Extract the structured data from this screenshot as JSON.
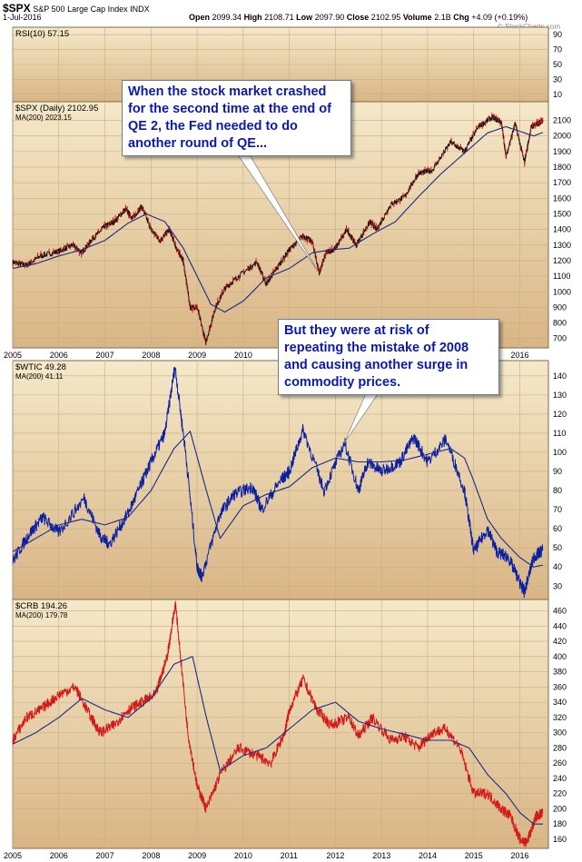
{
  "header": {
    "symbol": "$SPX",
    "name": "S&P 500 Large Cap Index",
    "exchange": "INDX",
    "date": "1-Jul-2016",
    "open_label": "Open",
    "open": "2099.34",
    "high_label": "High",
    "high": "2108.71",
    "low_label": "Low",
    "low": "2097.90",
    "close_label": "Close",
    "close": "2102.95",
    "volume_label": "Volume",
    "volume": "2.1B",
    "chg_label": "Chg",
    "chg": "+4.09 (+0.19%)",
    "watermark": "© StockCharts.com"
  },
  "colors": {
    "panel_top": "#f5e9c9",
    "panel_bottom": "#d9b585",
    "grid": "#c8ad86",
    "spx_line": "#111111",
    "ma_line": "#1a2a88",
    "wtic_line": "#0a1fa3",
    "crb_line": "#d21a1a",
    "callout_text": "#0a1aa8"
  },
  "callouts": [
    {
      "lines": [
        "When the stock market crashed",
        "for the second time at the end of",
        "QE 2, the Fed needed to do",
        "another round of QE..."
      ]
    },
    {
      "lines": [
        "But they were at risk of",
        "repeating the mistake of 2008",
        "and causing another surge in",
        "commodity prices."
      ]
    }
  ],
  "chart_data": [
    {
      "type": "line",
      "title": "RSI(10) 57.15",
      "ylim": [
        0,
        100
      ],
      "y_ticks": [
        10,
        30,
        50,
        70,
        90
      ],
      "y_tick_labels": [
        "10",
        "30",
        "50",
        "70",
        "90"
      ],
      "grid": true,
      "series": [
        {
          "name": "RSI(10) 57.15",
          "x": [
            2016.5
          ],
          "values": [
            57.15
          ]
        }
      ]
    },
    {
      "type": "line",
      "title": "$SPX (Daily) 2102.95",
      "legend": [
        "$SPX (Daily) 2102.95",
        "MA(200) 2023.15"
      ],
      "ylim": [
        640,
        2220
      ],
      "y_ticks": [
        700,
        800,
        900,
        1000,
        1100,
        1200,
        1300,
        1400,
        1500,
        1600,
        1700,
        1800,
        1900,
        2000,
        2100
      ],
      "y_tick_labels": [
        "700",
        "800",
        "900",
        "1000",
        "1100",
        "1200",
        "1300",
        "1400",
        "1500",
        "1600",
        "1700",
        "1800",
        "1900",
        "2000",
        "2100"
      ],
      "x_tick_labels": [
        "2005",
        "2006",
        "2007",
        "2008",
        "2009",
        "2010",
        "2011",
        "2012",
        "2013",
        "2014",
        "2015",
        "2016"
      ],
      "x_ticks": [
        2005,
        2006,
        2007,
        2008,
        2009,
        2010,
        2011,
        2012,
        2013,
        2014,
        2015,
        2016
      ],
      "grid": true,
      "series": [
        {
          "name": "$SPX (Daily) 2102.95",
          "x": [
            2005.0,
            2005.3,
            2005.6,
            2006.0,
            2006.3,
            2006.5,
            2006.7,
            2007.0,
            2007.2,
            2007.45,
            2007.6,
            2007.8,
            2008.0,
            2008.2,
            2008.4,
            2008.55,
            2008.7,
            2008.85,
            2009.0,
            2009.19,
            2009.4,
            2009.6,
            2009.9,
            2010.3,
            2010.5,
            2010.7,
            2011.0,
            2011.3,
            2011.5,
            2011.65,
            2011.8,
            2012.0,
            2012.25,
            2012.45,
            2012.75,
            2012.9,
            2013.2,
            2013.5,
            2013.8,
            2014.1,
            2014.5,
            2014.8,
            2015.1,
            2015.4,
            2015.6,
            2015.7,
            2015.9,
            2016.1,
            2016.25,
            2016.4,
            2016.5
          ],
          "values": [
            1190,
            1170,
            1230,
            1260,
            1300,
            1250,
            1330,
            1420,
            1450,
            1530,
            1470,
            1550,
            1400,
            1330,
            1400,
            1280,
            1200,
            900,
            900,
            676,
            900,
            1020,
            1100,
            1190,
            1050,
            1140,
            1270,
            1360,
            1320,
            1120,
            1250,
            1280,
            1400,
            1300,
            1450,
            1400,
            1560,
            1610,
            1760,
            1780,
            1960,
            1900,
            2060,
            2120,
            2090,
            1870,
            2080,
            1830,
            2060,
            2080,
            2103
          ]
        },
        {
          "name": "MA(200) 2023.15",
          "x": [
            2005.0,
            2005.5,
            2006.0,
            2006.5,
            2007.0,
            2007.5,
            2007.9,
            2008.3,
            2008.7,
            2009.0,
            2009.3,
            2009.6,
            2010.0,
            2010.5,
            2011.0,
            2011.5,
            2011.9,
            2012.3,
            2012.8,
            2013.3,
            2013.8,
            2014.3,
            2014.8,
            2015.3,
            2015.7,
            2016.0,
            2016.3,
            2016.5
          ],
          "values": [
            1150,
            1180,
            1230,
            1270,
            1330,
            1440,
            1500,
            1450,
            1280,
            1100,
            920,
            870,
            940,
            1090,
            1150,
            1250,
            1270,
            1280,
            1370,
            1450,
            1610,
            1760,
            1890,
            2020,
            2060,
            2030,
            2000,
            2023
          ]
        }
      ]
    },
    {
      "type": "line",
      "title": "$WTIC 49.28",
      "legend": [
        "$WTIC 49.28",
        "MA(200) 41.11"
      ],
      "ylim": [
        23,
        148
      ],
      "y_ticks": [
        30,
        40,
        50,
        60,
        70,
        80,
        90,
        100,
        110,
        120,
        130,
        140
      ],
      "y_tick_labels": [
        "30",
        "40",
        "50",
        "60",
        "70",
        "80",
        "90",
        "100",
        "110",
        "120",
        "130",
        "140"
      ],
      "grid": true,
      "series": [
        {
          "name": "$WTIC 49.28",
          "x": [
            2005.0,
            2005.35,
            2005.65,
            2006.0,
            2006.55,
            2006.9,
            2007.1,
            2007.5,
            2007.8,
            2008.0,
            2008.3,
            2008.52,
            2008.75,
            2009.0,
            2009.1,
            2009.5,
            2009.8,
            2010.2,
            2010.4,
            2010.8,
            2011.0,
            2011.3,
            2011.75,
            2012.2,
            2012.5,
            2012.7,
            2013.0,
            2013.4,
            2013.7,
            2014.0,
            2014.4,
            2014.8,
            2015.0,
            2015.3,
            2015.5,
            2015.75,
            2016.0,
            2016.1,
            2016.3,
            2016.5
          ],
          "values": [
            43,
            57,
            66,
            58,
            76,
            56,
            52,
            68,
            84,
            95,
            110,
            145,
            100,
            40,
            35,
            68,
            78,
            82,
            70,
            85,
            90,
            112,
            80,
            105,
            80,
            95,
            90,
            95,
            108,
            95,
            107,
            80,
            48,
            60,
            48,
            45,
            32,
            27,
            45,
            49
          ]
        },
        {
          "name": "MA(200) 41.11",
          "x": [
            2005.0,
            2005.5,
            2006.0,
            2006.5,
            2007.0,
            2007.5,
            2008.0,
            2008.5,
            2008.85,
            2009.2,
            2009.5,
            2010.0,
            2010.5,
            2011.0,
            2011.5,
            2012.0,
            2012.5,
            2013.0,
            2013.5,
            2014.0,
            2014.5,
            2014.8,
            2015.0,
            2015.3,
            2015.6,
            2016.0,
            2016.3,
            2016.5
          ],
          "values": [
            48,
            55,
            62,
            65,
            62,
            66,
            80,
            102,
            111,
            80,
            55,
            72,
            78,
            82,
            92,
            97,
            95,
            95,
            96,
            99,
            102,
            97,
            85,
            65,
            55,
            45,
            40,
            41
          ]
        }
      ]
    },
    {
      "type": "line",
      "title": "$CRB 194.26",
      "legend": [
        "$CRB 194.26",
        "MA(200) 179.78"
      ],
      "ylim": [
        148,
        475
      ],
      "y_ticks": [
        160,
        180,
        200,
        220,
        240,
        260,
        280,
        300,
        320,
        340,
        360,
        380,
        400,
        420,
        440,
        460
      ],
      "y_tick_labels": [
        "160",
        "180",
        "200",
        "220",
        "240",
        "260",
        "280",
        "300",
        "320",
        "340",
        "360",
        "380",
        "400",
        "420",
        "440",
        "460"
      ],
      "x_tick_labels": [
        "2005",
        "2006",
        "2007",
        "2008",
        "2009",
        "2010",
        "2011",
        "2012",
        "2013",
        "2014",
        "2015",
        "2016"
      ],
      "x_ticks": [
        2005,
        2006,
        2007,
        2008,
        2009,
        2010,
        2011,
        2012,
        2013,
        2014,
        2015,
        2016
      ],
      "grid": true,
      "series": [
        {
          "name": "$CRB 194.26",
          "x": [
            2005.0,
            2005.3,
            2005.6,
            2006.0,
            2006.35,
            2006.7,
            2006.9,
            2007.2,
            2007.5,
            2007.8,
            2008.1,
            2008.35,
            2008.53,
            2008.8,
            2009.0,
            2009.2,
            2009.5,
            2009.9,
            2010.3,
            2010.6,
            2010.9,
            2011.0,
            2011.3,
            2011.6,
            2011.9,
            2012.3,
            2012.5,
            2012.8,
            2013.2,
            2013.5,
            2013.8,
            2014.1,
            2014.4,
            2014.7,
            2015.0,
            2015.3,
            2015.6,
            2015.8,
            2016.0,
            2016.15,
            2016.35,
            2016.5
          ],
          "values": [
            290,
            320,
            330,
            350,
            360,
            320,
            300,
            310,
            330,
            340,
            350,
            400,
            470,
            300,
            230,
            200,
            245,
            280,
            270,
            260,
            300,
            330,
            370,
            330,
            310,
            320,
            295,
            320,
            290,
            295,
            280,
            300,
            305,
            280,
            220,
            220,
            200,
            190,
            160,
            155,
            190,
            194
          ]
        },
        {
          "name": "MA(200) 179.78",
          "x": [
            2005.0,
            2005.5,
            2006.0,
            2006.5,
            2007.0,
            2007.5,
            2008.0,
            2008.5,
            2008.9,
            2009.2,
            2009.5,
            2010.0,
            2010.5,
            2011.0,
            2011.5,
            2012.0,
            2012.5,
            2013.0,
            2013.5,
            2014.0,
            2014.5,
            2014.9,
            2015.3,
            2015.7,
            2016.0,
            2016.3,
            2016.5
          ],
          "values": [
            285,
            300,
            320,
            345,
            330,
            320,
            345,
            390,
            400,
            320,
            250,
            270,
            280,
            305,
            330,
            340,
            315,
            305,
            298,
            290,
            290,
            280,
            245,
            220,
            195,
            180,
            180
          ]
        }
      ]
    }
  ]
}
